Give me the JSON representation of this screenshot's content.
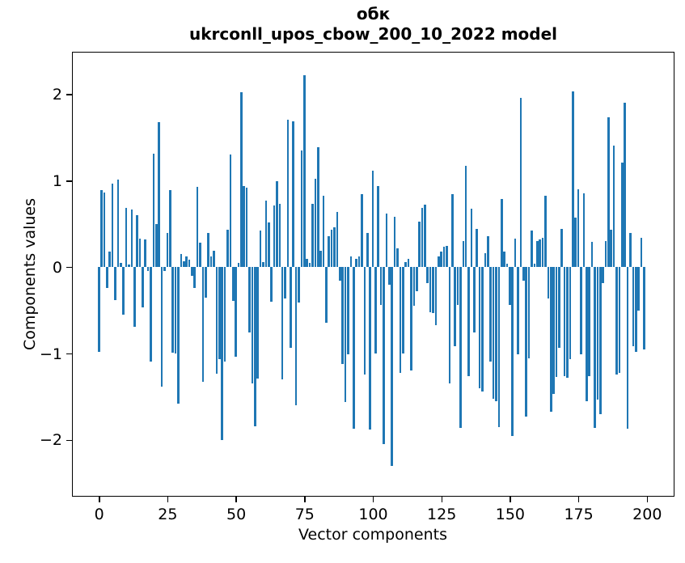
{
  "chart_data": {
    "type": "bar",
    "title": "обк",
    "subtitle": "ukrconll_upos_cbow_200_10_2022 model",
    "xlabel": "Vector components",
    "ylabel": "Components values",
    "x_ticks": [
      0,
      25,
      50,
      75,
      100,
      125,
      150,
      175,
      200
    ],
    "y_ticks": [
      2,
      1,
      0,
      -1,
      -2
    ],
    "xlim": [
      -10,
      210
    ],
    "ylim": [
      -2.66,
      2.49
    ],
    "bar_color": "#1f77b4",
    "n_components": 200,
    "grid": false,
    "legend": "none",
    "values": [
      -0.98,
      0.89,
      0.86,
      -0.24,
      0.18,
      0.97,
      -0.38,
      1.01,
      0.05,
      -0.55,
      0.69,
      0.03,
      0.67,
      -0.69,
      0.6,
      0.33,
      -0.47,
      0.32,
      -0.05,
      -1.09,
      1.31,
      0.5,
      1.68,
      -1.38,
      -0.05,
      0.4,
      0.89,
      -0.99,
      -1.0,
      -1.58,
      0.15,
      0.07,
      0.12,
      0.09,
      -0.1,
      -0.24,
      0.93,
      0.28,
      -1.33,
      -0.35,
      0.4,
      0.12,
      0.19,
      -1.23,
      -1.07,
      -2.0,
      -1.09,
      0.43,
      1.3,
      -0.39,
      -1.04,
      0.05,
      2.02,
      0.94,
      0.92,
      -0.76,
      -1.35,
      -1.84,
      -1.29,
      0.42,
      0.06,
      0.77,
      0.52,
      -0.4,
      0.71,
      0.99,
      0.73,
      -1.3,
      -0.36,
      1.71,
      -0.93,
      1.69,
      -1.6,
      -0.41,
      1.35,
      2.22,
      0.1,
      0.05,
      0.73,
      1.02,
      1.39,
      0.19,
      0.83,
      -0.64,
      0.36,
      0.43,
      0.46,
      0.64,
      -0.16,
      -1.12,
      -1.56,
      -1.01,
      0.12,
      -1.87,
      0.1,
      0.12,
      0.84,
      -1.24,
      0.4,
      -1.88,
      1.12,
      -1.0,
      0.94,
      -0.44,
      -2.05,
      0.62,
      -0.2,
      -2.3,
      0.58,
      0.22,
      -1.22,
      -1.0,
      0.06,
      0.1,
      -1.2,
      -0.45,
      -0.28,
      0.53,
      0.69,
      0.72,
      -0.19,
      -0.52,
      -0.53,
      -0.67,
      0.12,
      0.18,
      0.24,
      0.25,
      -1.35,
      0.84,
      -0.92,
      -0.44,
      -1.86,
      0.3,
      1.17,
      -1.26,
      0.68,
      -0.76,
      0.44,
      -1.4,
      -1.44,
      0.16,
      0.36,
      -1.09,
      -1.52,
      -1.55,
      -1.85,
      0.79,
      0.18,
      0.04,
      -0.44,
      -1.95,
      0.33,
      -1.01,
      1.96,
      -0.16,
      -1.73,
      -1.06,
      0.42,
      0.04,
      0.3,
      0.32,
      0.34,
      0.83,
      -0.36,
      -1.67,
      -1.47,
      -1.27,
      -0.93,
      0.44,
      -1.26,
      -1.28,
      -1.07,
      2.03,
      0.57,
      0.9,
      -1.01,
      0.85,
      -1.55,
      -1.26,
      0.29,
      -1.86,
      -1.53,
      -1.7,
      -0.19,
      0.3,
      1.73,
      0.43,
      1.41,
      -1.24,
      -1.22,
      1.21,
      1.9,
      -1.87,
      0.4,
      -0.92,
      -0.98,
      -0.5,
      0.34,
      -0.95
    ]
  }
}
